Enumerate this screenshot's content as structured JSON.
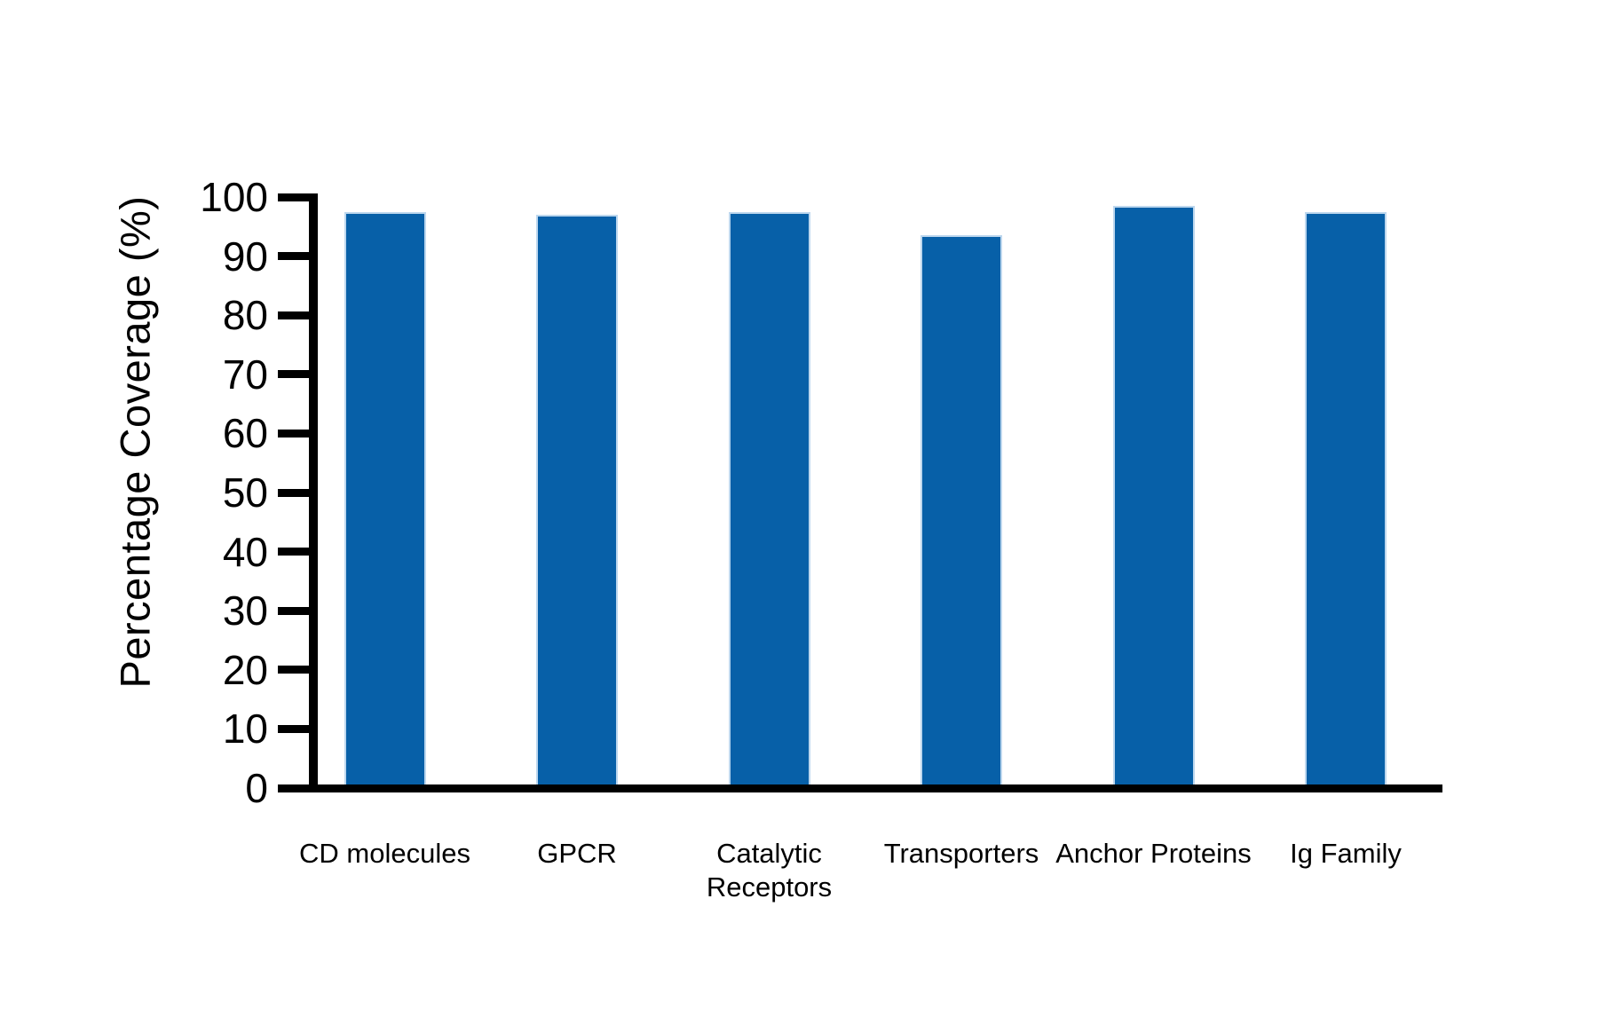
{
  "chart_data": {
    "type": "bar",
    "title": "",
    "xlabel": "",
    "ylabel": "Percentage Coverage (%)",
    "categories": [
      "CD molecules",
      "GPCR",
      "Catalytic Receptors",
      "Transporters",
      "Anchor Proteins",
      "Ig Family"
    ],
    "values": [
      97.5,
      97,
      97.5,
      93.5,
      98.5,
      97.5
    ],
    "ylim": [
      0,
      100
    ],
    "yticks": [
      0,
      10,
      20,
      30,
      40,
      50,
      60,
      70,
      80,
      90,
      100
    ],
    "grid": false,
    "legend_position": "none",
    "bar_color": "#0760A8",
    "bar_edge_color": "#BDD7EE",
    "axis_color": "#000000",
    "text_color": "#000000",
    "background_color": "#FFFFFF"
  }
}
